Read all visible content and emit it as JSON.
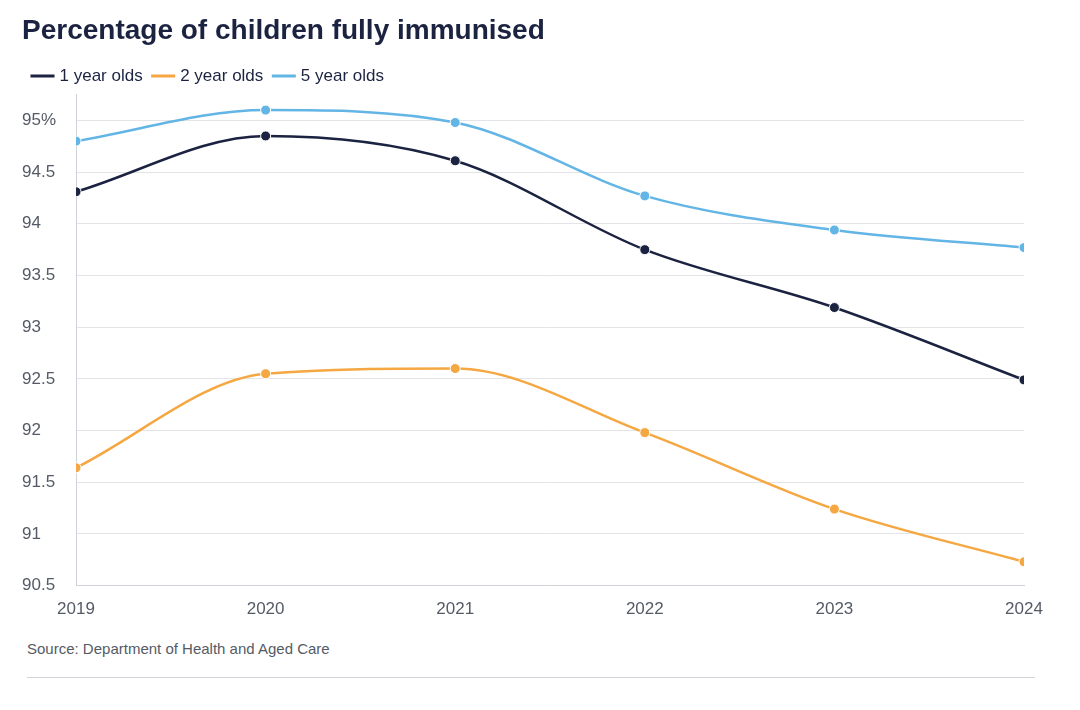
{
  "chart_data": {
    "type": "line",
    "title": "Percentage of children fully immunised",
    "source": "Source: Department of Health and Aged Care",
    "categories": [
      "2019",
      "2020",
      "2021",
      "2022",
      "2023",
      "2024"
    ],
    "series": [
      {
        "name": "1 year olds",
        "color": "#1b2341",
        "values": [
          94.31,
          94.85,
          94.61,
          93.75,
          93.19,
          92.49
        ]
      },
      {
        "name": "2 year olds",
        "color": "#f5a742",
        "values": [
          91.64,
          92.55,
          92.6,
          91.98,
          91.24,
          90.73
        ]
      },
      {
        "name": "5 year olds",
        "color": "#63b5e5",
        "values": [
          94.8,
          95.1,
          94.98,
          94.27,
          93.94,
          93.77
        ]
      }
    ],
    "ylim": [
      90.5,
      95.25
    ],
    "yticks": [
      90.5,
      91,
      91.5,
      92,
      92.5,
      93,
      93.5,
      94,
      94.5,
      {
        "value": 95,
        "label": "95%"
      }
    ],
    "grid": true,
    "legend": "top-left",
    "marker": "circle"
  }
}
